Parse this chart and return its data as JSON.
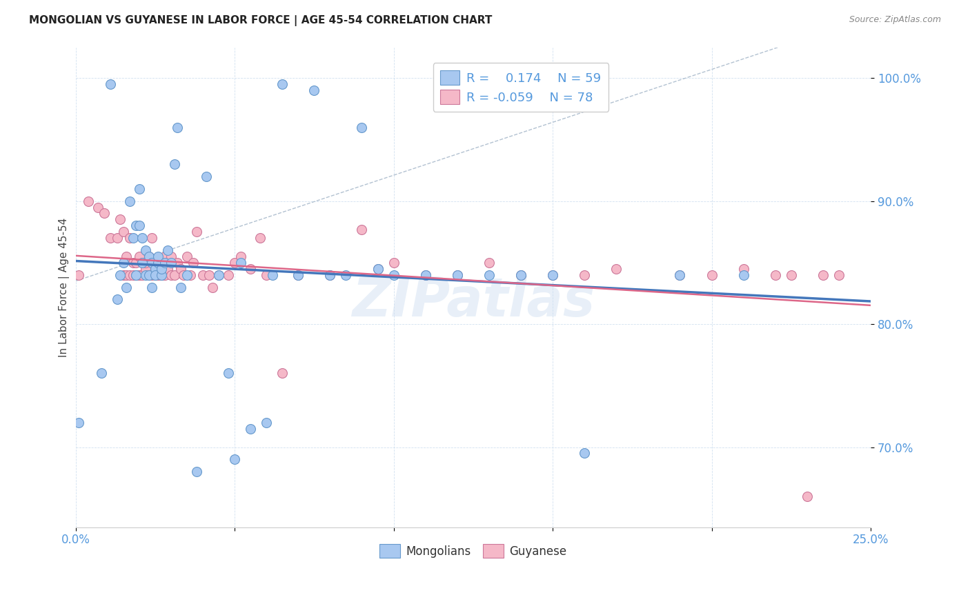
{
  "title": "MONGOLIAN VS GUYANESE IN LABOR FORCE | AGE 45-54 CORRELATION CHART",
  "source": "Source: ZipAtlas.com",
  "ylabel": "In Labor Force | Age 45-54",
  "xlim": [
    0.0,
    0.25
  ],
  "ylim": [
    0.635,
    1.025
  ],
  "yticks": [
    0.7,
    0.8,
    0.9,
    1.0
  ],
  "ytick_labels": [
    "70.0%",
    "80.0%",
    "90.0%",
    "100.0%"
  ],
  "xtick_vals": [
    0.0,
    0.05,
    0.1,
    0.15,
    0.2,
    0.25
  ],
  "xtick_labels": [
    "0.0%",
    "",
    "",
    "",
    "",
    "25.0%"
  ],
  "legend_label1": "Mongolians",
  "legend_label2": "Guyanese",
  "R1": 0.174,
  "N1": 59,
  "R2": -0.059,
  "N2": 78,
  "mongolian_fill": "#A8C8F0",
  "mongolian_edge": "#6699CC",
  "guyanese_fill": "#F5B8C8",
  "guyanese_edge": "#CC7799",
  "mongolian_line_color": "#4477BB",
  "guyanese_line_color": "#DD6688",
  "dashed_line_color": "#AABBCC",
  "tick_color": "#5599DD",
  "watermark": "ZIPatlas",
  "mongolian_x": [
    0.001,
    0.008,
    0.011,
    0.013,
    0.014,
    0.015,
    0.016,
    0.017,
    0.018,
    0.019,
    0.019,
    0.02,
    0.02,
    0.021,
    0.021,
    0.022,
    0.022,
    0.023,
    0.023,
    0.024,
    0.024,
    0.025,
    0.025,
    0.026,
    0.026,
    0.027,
    0.027,
    0.028,
    0.029,
    0.03,
    0.031,
    0.032,
    0.033,
    0.035,
    0.038,
    0.041,
    0.045,
    0.048,
    0.05,
    0.052,
    0.055,
    0.06,
    0.062,
    0.065,
    0.07,
    0.075,
    0.08,
    0.085,
    0.09,
    0.095,
    0.1,
    0.11,
    0.12,
    0.13,
    0.14,
    0.15,
    0.16,
    0.19,
    0.21
  ],
  "mongolian_y": [
    0.72,
    0.76,
    0.995,
    0.82,
    0.84,
    0.85,
    0.83,
    0.9,
    0.87,
    0.88,
    0.84,
    0.88,
    0.91,
    0.85,
    0.87,
    0.86,
    0.84,
    0.855,
    0.84,
    0.85,
    0.83,
    0.845,
    0.84,
    0.85,
    0.855,
    0.84,
    0.845,
    0.85,
    0.86,
    0.85,
    0.93,
    0.96,
    0.83,
    0.84,
    0.68,
    0.92,
    0.84,
    0.76,
    0.69,
    0.85,
    0.715,
    0.72,
    0.84,
    0.995,
    0.84,
    0.99,
    0.84,
    0.84,
    0.96,
    0.845,
    0.84,
    0.84,
    0.84,
    0.84,
    0.84,
    0.84,
    0.695,
    0.84,
    0.84
  ],
  "guyanese_x": [
    0.001,
    0.004,
    0.007,
    0.009,
    0.011,
    0.013,
    0.014,
    0.015,
    0.015,
    0.016,
    0.016,
    0.017,
    0.017,
    0.018,
    0.018,
    0.019,
    0.019,
    0.02,
    0.02,
    0.02,
    0.021,
    0.021,
    0.022,
    0.022,
    0.023,
    0.023,
    0.024,
    0.024,
    0.025,
    0.025,
    0.026,
    0.026,
    0.027,
    0.027,
    0.028,
    0.028,
    0.029,
    0.03,
    0.03,
    0.031,
    0.032,
    0.033,
    0.034,
    0.035,
    0.036,
    0.037,
    0.038,
    0.04,
    0.042,
    0.043,
    0.045,
    0.048,
    0.05,
    0.052,
    0.055,
    0.058,
    0.06,
    0.065,
    0.07,
    0.08,
    0.09,
    0.095,
    0.1,
    0.11,
    0.12,
    0.13,
    0.14,
    0.15,
    0.16,
    0.17,
    0.19,
    0.2,
    0.21,
    0.22,
    0.225,
    0.23,
    0.235,
    0.24
  ],
  "guyanese_y": [
    0.84,
    0.9,
    0.895,
    0.89,
    0.87,
    0.87,
    0.885,
    0.84,
    0.875,
    0.84,
    0.855,
    0.84,
    0.87,
    0.84,
    0.85,
    0.84,
    0.85,
    0.84,
    0.855,
    0.84,
    0.84,
    0.85,
    0.845,
    0.85,
    0.84,
    0.855,
    0.84,
    0.87,
    0.85,
    0.84,
    0.85,
    0.84,
    0.84,
    0.84,
    0.84,
    0.855,
    0.845,
    0.84,
    0.855,
    0.84,
    0.85,
    0.845,
    0.84,
    0.855,
    0.84,
    0.85,
    0.875,
    0.84,
    0.84,
    0.83,
    0.84,
    0.84,
    0.85,
    0.855,
    0.845,
    0.87,
    0.84,
    0.76,
    0.84,
    0.84,
    0.877,
    0.845,
    0.85,
    0.84,
    0.84,
    0.85,
    0.84,
    0.84,
    0.84,
    0.845,
    0.84,
    0.84,
    0.845,
    0.84,
    0.84,
    0.66,
    0.84,
    0.84
  ]
}
